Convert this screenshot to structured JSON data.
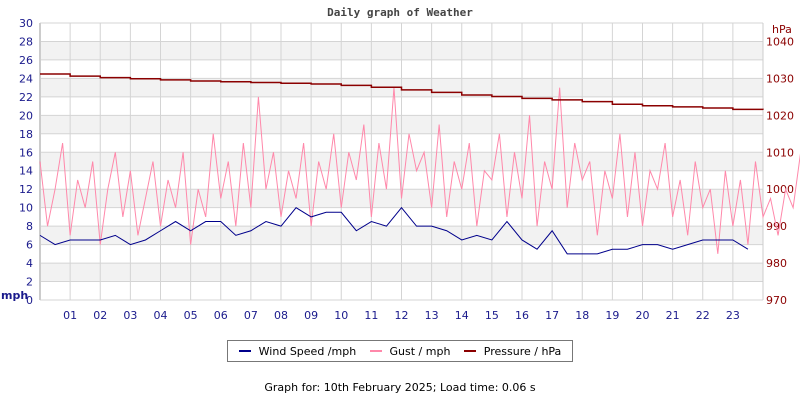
{
  "chart_data": {
    "type": "line",
    "title": "Daily graph of Weather",
    "ylabel": "mph",
    "y2label": "hPa",
    "ylim": [
      0,
      30
    ],
    "y2lim": [
      970,
      1045
    ],
    "yticks": [
      0,
      2,
      4,
      6,
      8,
      10,
      12,
      14,
      16,
      18,
      20,
      22,
      24,
      26,
      28,
      30
    ],
    "y2ticks": [
      970,
      980,
      990,
      1000,
      1010,
      1020,
      1030,
      1040
    ],
    "xlim": [
      0,
      24
    ],
    "xticks": [
      "01",
      "02",
      "03",
      "04",
      "05",
      "06",
      "07",
      "08",
      "09",
      "10",
      "11",
      "12",
      "13",
      "14",
      "15",
      "16",
      "17",
      "18",
      "19",
      "20",
      "21",
      "22",
      "23"
    ],
    "grid": true,
    "legend_position": "bottom",
    "series": [
      {
        "name": "Wind Speed /mph",
        "color": "#00008b",
        "axis": "left",
        "step_hours": 0.5,
        "values": [
          7,
          6,
          6.5,
          6.5,
          6.5,
          7,
          6,
          6.5,
          7.5,
          8.5,
          7.5,
          8.5,
          8.5,
          7,
          7.5,
          8.5,
          8,
          10,
          9,
          9.5,
          9.5,
          7.5,
          8.5,
          8,
          10,
          8,
          8,
          7.5,
          6.5,
          7,
          6.5,
          8.5,
          6.5,
          5.5,
          7.5,
          5,
          5,
          5,
          5.5,
          5.5,
          6,
          6,
          5.5,
          6,
          6.5,
          6.5,
          6.5,
          5.5
        ]
      },
      {
        "name": "Gust / mph",
        "color": "#ff88aa",
        "axis": "left",
        "step_hours": 0.25,
        "values": [
          15,
          8,
          12,
          17,
          7,
          13,
          10,
          15,
          6,
          12,
          16,
          9,
          14,
          7,
          11,
          15,
          8,
          13,
          10,
          16,
          6,
          12,
          9,
          18,
          11,
          15,
          8,
          17,
          10,
          22,
          12,
          16,
          9,
          14,
          11,
          17,
          8,
          15,
          12,
          18,
          10,
          16,
          13,
          19,
          9,
          17,
          12,
          23,
          11,
          18,
          14,
          16,
          10,
          19,
          9,
          15,
          12,
          17,
          8,
          14,
          13,
          18,
          9,
          16,
          11,
          20,
          8,
          15,
          12,
          23,
          10,
          17,
          13,
          15,
          7,
          14,
          11,
          18,
          9,
          16,
          8,
          14,
          12,
          17,
          9,
          13,
          7,
          15,
          10,
          12,
          5,
          14,
          8,
          13,
          6,
          15,
          9,
          11,
          7,
          12,
          10,
          16,
          6,
          13,
          9,
          11,
          5,
          14,
          8,
          12,
          10,
          15,
          7,
          11,
          9,
          13,
          6,
          12,
          8,
          14,
          10,
          11
        ]
      },
      {
        "name": "Pressure / hPa",
        "color": "#8b0000",
        "axis": "right",
        "step_hours": 1,
        "values": [
          1031.2,
          1030.6,
          1030.2,
          1029.9,
          1029.6,
          1029.3,
          1029.1,
          1028.9,
          1028.7,
          1028.5,
          1028.1,
          1027.6,
          1026.9,
          1026.2,
          1025.5,
          1025.1,
          1024.6,
          1024.2,
          1023.7,
          1023.0,
          1022.6,
          1022.3,
          1022.0,
          1021.6,
          1021.5
        ]
      }
    ]
  },
  "legend": {
    "wind": "Wind Speed /mph",
    "gust": "Gust / mph",
    "pressure": "Pressure / hPa"
  },
  "footer": "Graph for: 10th February 2025; Load time: 0.06 s"
}
